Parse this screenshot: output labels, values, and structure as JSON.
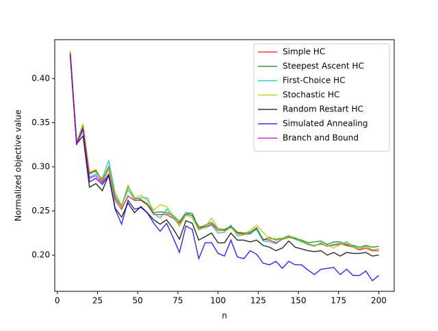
{
  "chart_data": {
    "type": "line",
    "xlabel": "n",
    "ylabel": "Normalized objective value",
    "x": [
      8,
      12,
      16,
      20,
      24,
      28,
      32,
      36,
      40,
      44,
      48,
      52,
      56,
      60,
      64,
      68,
      72,
      76,
      80,
      84,
      88,
      92,
      96,
      100,
      104,
      108,
      112,
      116,
      120,
      124,
      128,
      132,
      136,
      140,
      144,
      148,
      152,
      156,
      160,
      164,
      168,
      172,
      176,
      180,
      184,
      188,
      192,
      196,
      200
    ],
    "series": [
      {
        "name": "Simple HC",
        "color": "#ff0000",
        "values": [
          0.43,
          0.327,
          0.345,
          0.292,
          0.296,
          0.283,
          0.298,
          0.262,
          0.252,
          0.267,
          0.262,
          0.262,
          0.257,
          0.246,
          0.246,
          0.246,
          0.242,
          0.236,
          0.246,
          0.245,
          0.232,
          0.232,
          0.235,
          0.228,
          0.228,
          0.232,
          0.225,
          0.224,
          0.224,
          0.23,
          0.218,
          0.217,
          0.214,
          0.218,
          0.22,
          0.219,
          0.216,
          0.212,
          0.211,
          0.213,
          0.21,
          0.212,
          0.213,
          0.211,
          0.209,
          0.206,
          0.208,
          0.205,
          0.205
        ]
      },
      {
        "name": "Steepest Ascent HC",
        "color": "#008000",
        "values": [
          0.43,
          0.328,
          0.346,
          0.293,
          0.295,
          0.285,
          0.3,
          0.265,
          0.255,
          0.278,
          0.265,
          0.263,
          0.258,
          0.248,
          0.249,
          0.248,
          0.245,
          0.238,
          0.248,
          0.247,
          0.23,
          0.234,
          0.237,
          0.23,
          0.229,
          0.233,
          0.226,
          0.225,
          0.226,
          0.231,
          0.217,
          0.22,
          0.217,
          0.219,
          0.222,
          0.219,
          0.217,
          0.214,
          0.215,
          0.216,
          0.212,
          0.215,
          0.215,
          0.212,
          0.211,
          0.209,
          0.211,
          0.209,
          0.21
        ]
      },
      {
        "name": "First-Choice HC",
        "color": "#00bfbf",
        "values": [
          0.43,
          0.327,
          0.344,
          0.288,
          0.292,
          0.287,
          0.307,
          0.27,
          0.256,
          0.274,
          0.263,
          0.265,
          0.265,
          0.247,
          0.242,
          0.252,
          0.243,
          0.233,
          0.248,
          0.244,
          0.23,
          0.231,
          0.234,
          0.225,
          0.226,
          0.234,
          0.222,
          0.223,
          0.225,
          0.229,
          0.216,
          0.215,
          0.213,
          0.218,
          0.221,
          0.218,
          0.215,
          0.212,
          0.21,
          0.214,
          0.21,
          0.211,
          0.212,
          0.215,
          0.21,
          0.207,
          0.21,
          0.206,
          0.207
        ]
      },
      {
        "name": "Stochastic HC",
        "color": "#bfbf00",
        "values": [
          0.432,
          0.328,
          0.349,
          0.294,
          0.297,
          0.284,
          0.298,
          0.268,
          0.256,
          0.279,
          0.264,
          0.268,
          0.262,
          0.251,
          0.257,
          0.255,
          0.245,
          0.233,
          0.245,
          0.242,
          0.228,
          0.232,
          0.242,
          0.23,
          0.227,
          0.231,
          0.224,
          0.223,
          0.228,
          0.234,
          0.226,
          0.218,
          0.219,
          0.219,
          0.221,
          0.22,
          0.216,
          0.213,
          0.211,
          0.212,
          0.211,
          0.208,
          0.212,
          0.214,
          0.209,
          0.207,
          0.21,
          0.206,
          0.207
        ]
      },
      {
        "name": "Random Restart HC",
        "color": "#000000",
        "values": [
          0.428,
          0.326,
          0.335,
          0.277,
          0.281,
          0.273,
          0.291,
          0.253,
          0.243,
          0.259,
          0.248,
          0.255,
          0.248,
          0.24,
          0.235,
          0.24,
          0.23,
          0.218,
          0.239,
          0.236,
          0.217,
          0.221,
          0.225,
          0.214,
          0.214,
          0.225,
          0.217,
          0.217,
          0.215,
          0.217,
          0.211,
          0.209,
          0.205,
          0.208,
          0.216,
          0.209,
          0.207,
          0.205,
          0.204,
          0.205,
          0.2,
          0.203,
          0.199,
          0.203,
          0.202,
          0.202,
          0.203,
          0.199,
          0.2
        ]
      },
      {
        "name": "Simulated Annealing",
        "color": "#0000ff",
        "values": [
          0.428,
          0.325,
          0.343,
          0.283,
          0.287,
          0.28,
          0.29,
          0.252,
          0.235,
          0.262,
          0.252,
          0.254,
          0.248,
          0.236,
          0.227,
          0.236,
          0.22,
          0.203,
          0.233,
          0.229,
          0.196,
          0.214,
          0.214,
          0.202,
          0.199,
          0.217,
          0.198,
          0.196,
          0.205,
          0.201,
          0.191,
          0.189,
          0.193,
          0.185,
          0.193,
          0.189,
          0.189,
          0.183,
          0.178,
          0.184,
          0.185,
          0.186,
          0.178,
          0.184,
          0.177,
          0.177,
          0.182,
          0.171,
          0.177
        ]
      },
      {
        "name": "Branch and Bound",
        "color": "#bf00bf",
        "values": [
          0.428,
          0.326,
          0.342,
          0.287,
          0.29,
          0.282,
          0.292,
          null,
          null,
          null,
          null,
          null,
          null,
          null,
          null,
          null,
          null,
          null,
          null,
          null,
          null,
          null,
          null,
          null,
          null,
          null,
          null,
          null,
          null,
          null,
          null,
          null,
          null,
          null,
          null,
          null,
          null,
          null,
          null,
          null,
          null,
          null,
          null,
          null,
          null,
          null,
          null,
          null,
          null
        ]
      }
    ],
    "xlim": [
      -1.6,
      209.6
    ],
    "ylim": [
      0.159,
      0.444
    ],
    "xticks": [
      0,
      25,
      50,
      75,
      100,
      125,
      150,
      175,
      200
    ],
    "yticks": [
      {
        "value": 0.2,
        "label": "0.20"
      },
      0.25,
      {
        "value": 0.3,
        "label": "0.30"
      },
      0.35,
      {
        "value": 0.4,
        "label": "0.40"
      }
    ],
    "legend": "upper right"
  }
}
